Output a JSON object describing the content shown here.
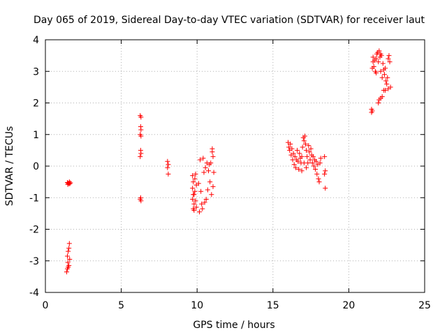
{
  "chart_data": {
    "type": "scatter",
    "title": "Day 065 of 2019, Sidereal Day-to-day VTEC variation (SDTVAR) for receiver laut",
    "xlabel": "GPS time / hours",
    "ylabel": "SDTVAR / TECUs",
    "xlim": [
      0,
      25
    ],
    "ylim": [
      -4,
      4
    ],
    "xticks": [
      0,
      5,
      10,
      15,
      20,
      25
    ],
    "yticks": [
      -4,
      -3,
      -2,
      -1,
      0,
      1,
      2,
      3,
      4
    ],
    "xtick_labels": [
      "0",
      "5",
      "10",
      "15",
      "20",
      "25"
    ],
    "ytick_labels": [
      "-4",
      "-3",
      "-2",
      "-1",
      "0",
      "1",
      "2",
      "3",
      "4"
    ],
    "grid": true,
    "marker": "+",
    "marker_color": "#ff0000",
    "series": [
      {
        "name": "SDTVAR",
        "points": [
          [
            1.45,
            -0.52
          ],
          [
            1.5,
            -0.55
          ],
          [
            1.55,
            -0.54
          ],
          [
            1.6,
            -0.56
          ],
          [
            1.65,
            -0.53
          ],
          [
            1.48,
            -0.58
          ],
          [
            1.58,
            -0.5
          ],
          [
            1.4,
            -3.35
          ],
          [
            1.45,
            -3.25
          ],
          [
            1.5,
            -3.2
          ],
          [
            1.55,
            -3.15
          ],
          [
            1.45,
            -2.85
          ],
          [
            1.5,
            -2.7
          ],
          [
            1.55,
            -2.6
          ],
          [
            1.58,
            -2.45
          ],
          [
            1.6,
            -2.95
          ],
          [
            1.48,
            -3.05
          ],
          [
            6.25,
            1.6
          ],
          [
            6.3,
            1.55
          ],
          [
            6.28,
            1.25
          ],
          [
            6.3,
            1.15
          ],
          [
            6.25,
            1.0
          ],
          [
            6.3,
            0.95
          ],
          [
            6.28,
            0.5
          ],
          [
            6.3,
            0.4
          ],
          [
            6.25,
            0.3
          ],
          [
            6.28,
            -1.0
          ],
          [
            6.3,
            -1.1
          ],
          [
            6.25,
            -1.05
          ],
          [
            8.05,
            0.15
          ],
          [
            8.1,
            0.05
          ],
          [
            8.05,
            -0.05
          ],
          [
            8.1,
            -0.25
          ],
          [
            9.7,
            -0.3
          ],
          [
            9.75,
            -0.5
          ],
          [
            9.7,
            -0.7
          ],
          [
            9.75,
            -0.9
          ],
          [
            9.7,
            -1.05
          ],
          [
            9.8,
            -1.2
          ],
          [
            9.75,
            -1.35
          ],
          [
            9.8,
            -1.4
          ],
          [
            9.85,
            -0.4
          ],
          [
            9.9,
            -0.25
          ],
          [
            9.85,
            -0.8
          ],
          [
            9.9,
            -1.1
          ],
          [
            9.95,
            -1.3
          ],
          [
            9.95,
            -0.6
          ],
          [
            9.8,
            -0.9
          ],
          [
            10.1,
            -0.55
          ],
          [
            10.15,
            -1.45
          ],
          [
            10.2,
            0.2
          ],
          [
            10.25,
            -0.8
          ],
          [
            10.3,
            -1.2
          ],
          [
            10.35,
            -1.35
          ],
          [
            10.4,
            0.25
          ],
          [
            10.45,
            -0.2
          ],
          [
            10.5,
            -1.15
          ],
          [
            10.55,
            -0.05
          ],
          [
            10.6,
            -1.05
          ],
          [
            10.65,
            0.1
          ],
          [
            10.7,
            -0.75
          ],
          [
            10.75,
            -0.15
          ],
          [
            10.8,
            0.05
          ],
          [
            10.85,
            -0.5
          ],
          [
            10.9,
            0.1
          ],
          [
            11.0,
            0.45
          ],
          [
            11.05,
            0.3
          ],
          [
            11.0,
            0.55
          ],
          [
            11.05,
            -0.65
          ],
          [
            11.1,
            -0.2
          ],
          [
            10.95,
            -0.9
          ],
          [
            16.0,
            0.75
          ],
          [
            16.05,
            0.6
          ],
          [
            16.1,
            0.5
          ],
          [
            16.15,
            0.7
          ],
          [
            16.2,
            0.35
          ],
          [
            16.25,
            0.55
          ],
          [
            16.3,
            0.2
          ],
          [
            16.35,
            0.4
          ],
          [
            16.4,
            0.05
          ],
          [
            16.45,
            0.3
          ],
          [
            16.5,
            -0.05
          ],
          [
            16.55,
            0.2
          ],
          [
            16.6,
            0.5
          ],
          [
            16.65,
            0.15
          ],
          [
            16.7,
            -0.1
          ],
          [
            16.75,
            0.4
          ],
          [
            16.8,
            0.25
          ],
          [
            16.85,
            0.1
          ],
          [
            16.9,
            -0.15
          ],
          [
            16.95,
            0.6
          ],
          [
            17.0,
            0.9
          ],
          [
            17.05,
            0.8
          ],
          [
            17.1,
            0.95
          ],
          [
            17.15,
            0.7
          ],
          [
            17.2,
            0.5
          ],
          [
            17.25,
            0.3
          ],
          [
            17.3,
            0.1
          ],
          [
            17.35,
            0.65
          ],
          [
            17.4,
            0.45
          ],
          [
            17.45,
            0.2
          ],
          [
            17.5,
            0.55
          ],
          [
            17.55,
            0.35
          ],
          [
            17.6,
            0.1
          ],
          [
            17.65,
            0.3
          ],
          [
            17.7,
            0.0
          ],
          [
            17.75,
            0.2
          ],
          [
            17.8,
            -0.1
          ],
          [
            17.85,
            0.15
          ],
          [
            17.9,
            -0.25
          ],
          [
            17.95,
            0.05
          ],
          [
            18.0,
            -0.4
          ],
          [
            18.05,
            -0.5
          ],
          [
            18.1,
            0.1
          ],
          [
            18.15,
            0.25
          ],
          [
            17.05,
            0.1
          ],
          [
            17.2,
            -0.05
          ],
          [
            16.9,
            0.3
          ],
          [
            18.4,
            0.3
          ],
          [
            18.45,
            -0.15
          ],
          [
            18.4,
            -0.25
          ],
          [
            18.45,
            -0.7
          ],
          [
            21.5,
            1.8
          ],
          [
            21.55,
            1.75
          ],
          [
            21.5,
            1.7
          ],
          [
            21.55,
            3.1
          ],
          [
            21.6,
            3.3
          ],
          [
            21.65,
            3.15
          ],
          [
            21.7,
            3.35
          ],
          [
            21.75,
            3.0
          ],
          [
            21.8,
            2.95
          ],
          [
            21.85,
            3.55
          ],
          [
            21.9,
            3.6
          ],
          [
            21.95,
            3.3
          ],
          [
            22.0,
            3.65
          ],
          [
            22.05,
            3.45
          ],
          [
            22.1,
            3.0
          ],
          [
            22.15,
            3.5
          ],
          [
            22.2,
            2.8
          ],
          [
            22.25,
            3.25
          ],
          [
            22.3,
            3.05
          ],
          [
            22.35,
            2.9
          ],
          [
            22.4,
            3.1
          ],
          [
            22.45,
            2.7
          ],
          [
            22.5,
            2.6
          ],
          [
            22.55,
            2.8
          ],
          [
            22.6,
            3.4
          ],
          [
            22.65,
            3.5
          ],
          [
            22.7,
            3.3
          ],
          [
            22.75,
            2.5
          ],
          [
            22.6,
            2.45
          ],
          [
            22.4,
            2.4
          ],
          [
            21.95,
            2.0
          ],
          [
            22.0,
            2.1
          ],
          [
            22.1,
            2.15
          ],
          [
            22.2,
            2.2
          ],
          [
            22.3,
            2.4
          ],
          [
            21.8,
            3.4
          ],
          [
            22.1,
            3.55
          ],
          [
            21.6,
            3.45
          ]
        ]
      }
    ]
  }
}
